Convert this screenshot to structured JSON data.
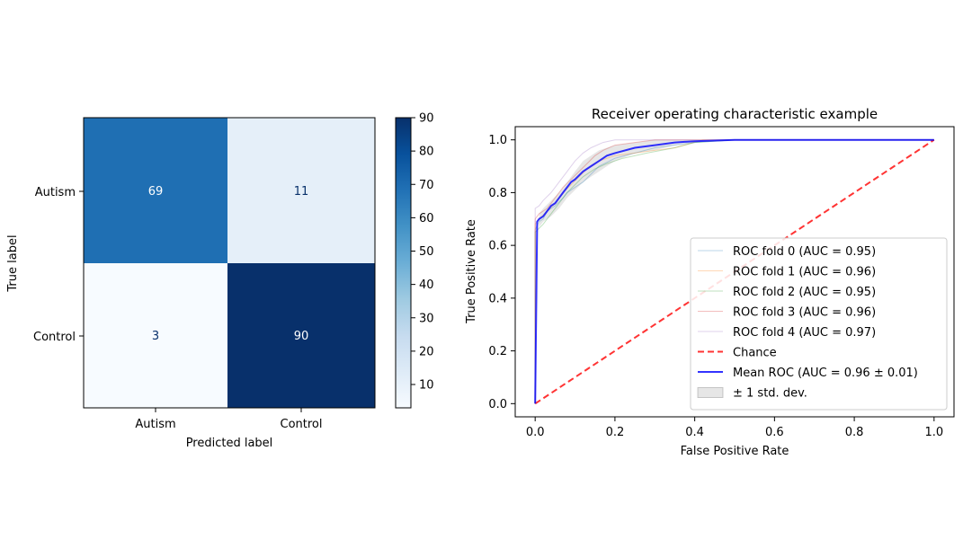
{
  "chart_data": [
    {
      "type": "heatmap",
      "title": "",
      "xlabel": "Predicted label",
      "ylabel": "True label",
      "x_categories": [
        "Autism",
        "Control"
      ],
      "y_categories": [
        "Autism",
        "Control"
      ],
      "values": [
        [
          69,
          11
        ],
        [
          3,
          90
        ]
      ],
      "colormap": "Blues",
      "colorbar": {
        "ticks": [
          10,
          20,
          30,
          40,
          50,
          60,
          70,
          80,
          90
        ],
        "range": [
          3,
          90
        ]
      }
    },
    {
      "type": "line",
      "title": "Receiver operating characteristic example",
      "xlabel": "False Positive Rate",
      "ylabel": "True Positive Rate",
      "xlim": [
        -0.05,
        1.05
      ],
      "ylim": [
        -0.05,
        1.05
      ],
      "xticks": [
        "0.0",
        "0.2",
        "0.4",
        "0.6",
        "0.8",
        "1.0"
      ],
      "yticks": [
        "0.0",
        "0.2",
        "0.4",
        "0.6",
        "0.8",
        "1.0"
      ],
      "legend_position": "lower-right",
      "series": [
        {
          "name": "ROC fold 0 (AUC = 0.95)",
          "color": "#1f77b4",
          "opacity": 0.3,
          "x": [
            0,
            0,
            0.01,
            0.02,
            0.03,
            0.05,
            0.07,
            0.08,
            0.1,
            0.12,
            0.14,
            0.16,
            0.2,
            0.25,
            0.3,
            0.4,
            0.5,
            0.7,
            1
          ],
          "y": [
            0,
            0.66,
            0.69,
            0.7,
            0.73,
            0.75,
            0.78,
            0.8,
            0.82,
            0.84,
            0.87,
            0.9,
            0.93,
            0.95,
            0.97,
            0.99,
            1,
            1,
            1
          ]
        },
        {
          "name": "ROC fold 1 (AUC = 0.96)",
          "color": "#ff7f0e",
          "opacity": 0.3,
          "x": [
            0,
            0,
            0.01,
            0.03,
            0.05,
            0.07,
            0.09,
            0.11,
            0.13,
            0.16,
            0.2,
            0.25,
            0.3,
            0.35,
            0.42,
            0.6,
            1
          ],
          "y": [
            0,
            0.68,
            0.7,
            0.73,
            0.76,
            0.8,
            0.83,
            0.86,
            0.89,
            0.92,
            0.94,
            0.95,
            0.96,
            0.97,
            1,
            1,
            1
          ]
        },
        {
          "name": "ROC fold 2 (AUC = 0.95)",
          "color": "#2ca02c",
          "opacity": 0.3,
          "x": [
            0,
            0,
            0.02,
            0.04,
            0.06,
            0.08,
            0.1,
            0.12,
            0.15,
            0.18,
            0.22,
            0.28,
            0.35,
            0.4,
            0.5,
            1
          ],
          "y": [
            0,
            0.65,
            0.68,
            0.72,
            0.76,
            0.8,
            0.83,
            0.86,
            0.89,
            0.91,
            0.93,
            0.95,
            0.97,
            0.99,
            1,
            1
          ]
        },
        {
          "name": "ROC fold 3 (AUC = 0.96)",
          "color": "#d62728",
          "opacity": 0.3,
          "x": [
            0,
            0,
            0.01,
            0.03,
            0.05,
            0.07,
            0.09,
            0.11,
            0.13,
            0.15,
            0.17,
            0.2,
            0.25,
            0.3,
            0.4,
            1
          ],
          "y": [
            0,
            0.7,
            0.72,
            0.74,
            0.78,
            0.82,
            0.85,
            0.88,
            0.91,
            0.94,
            0.96,
            0.98,
            0.99,
            1,
            1,
            1
          ]
        },
        {
          "name": "ROC fold 4 (AUC = 0.97)",
          "color": "#9467bd",
          "opacity": 0.3,
          "x": [
            0,
            0,
            0.01,
            0.02,
            0.04,
            0.06,
            0.08,
            0.1,
            0.12,
            0.14,
            0.17,
            0.2,
            0.25,
            0.3,
            1
          ],
          "y": [
            0,
            0.74,
            0.75,
            0.77,
            0.8,
            0.84,
            0.88,
            0.92,
            0.95,
            0.97,
            0.99,
            1,
            1,
            1,
            1
          ]
        },
        {
          "name": "Chance",
          "color": "#ff0000",
          "opacity": 0.8,
          "dashed": true,
          "x": [
            0,
            1
          ],
          "y": [
            0,
            1
          ]
        },
        {
          "name": "Mean ROC (AUC = 0.96 ± 0.01)",
          "color": "#0000ff",
          "opacity": 0.8,
          "width": 2,
          "x": [
            0,
            0.005,
            0.01,
            0.02,
            0.03,
            0.04,
            0.05,
            0.06,
            0.07,
            0.08,
            0.09,
            0.1,
            0.12,
            0.14,
            0.16,
            0.18,
            0.2,
            0.25,
            0.3,
            0.35,
            0.4,
            0.5,
            0.6,
            0.8,
            1
          ],
          "y": [
            0,
            0.69,
            0.7,
            0.71,
            0.73,
            0.75,
            0.76,
            0.78,
            0.8,
            0.82,
            0.84,
            0.85,
            0.88,
            0.9,
            0.92,
            0.94,
            0.95,
            0.97,
            0.98,
            0.99,
            0.995,
            1,
            1,
            1,
            1
          ]
        }
      ],
      "std_band": {
        "name": "± 1 std. dev.",
        "color": "#808080",
        "opacity": 0.2,
        "x": [
          0,
          0.01,
          0.02,
          0.04,
          0.06,
          0.08,
          0.1,
          0.12,
          0.14,
          0.16,
          0.18,
          0.2,
          0.25,
          0.3,
          0.35,
          0.4,
          0.5,
          1
        ],
        "lower": [
          0,
          0.67,
          0.69,
          0.71,
          0.74,
          0.78,
          0.81,
          0.84,
          0.86,
          0.88,
          0.9,
          0.92,
          0.95,
          0.96,
          0.98,
          0.99,
          1,
          1
        ],
        "upper": [
          0,
          0.72,
          0.74,
          0.77,
          0.8,
          0.84,
          0.88,
          0.92,
          0.94,
          0.96,
          0.97,
          0.98,
          0.99,
          1,
          1,
          1,
          1,
          1
        ]
      }
    }
  ]
}
